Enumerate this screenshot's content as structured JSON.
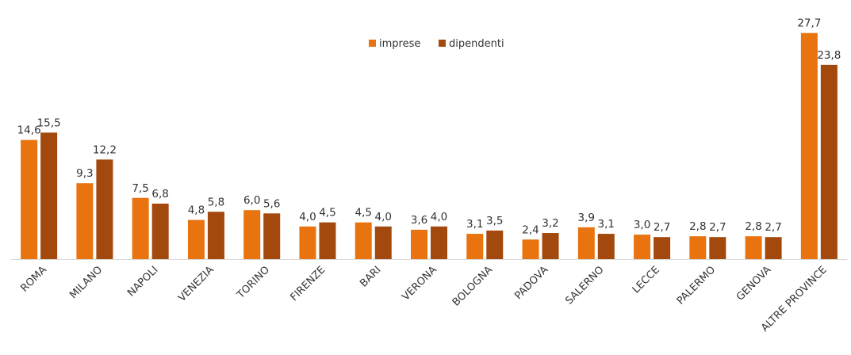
{
  "chart_data": {
    "type": "bar",
    "categories": [
      "ROMA",
      "MILANO",
      "NAPOLI",
      "VENEZIA",
      "TORINO",
      "FIRENZE",
      "BARI",
      "VERONA",
      "BOLOGNA",
      "PADOVA",
      "SALERNO",
      "LECCE",
      "PALERMO",
      "GENOVA",
      "ALTRE PROVINCE"
    ],
    "series": [
      {
        "name": "imprese",
        "color": "#e8730f",
        "values": [
          14.6,
          9.3,
          7.5,
          4.8,
          6.0,
          4.0,
          4.5,
          3.6,
          3.1,
          2.4,
          3.9,
          3.0,
          2.8,
          2.8,
          27.7
        ],
        "value_labels": [
          "14,6",
          "9,3",
          "7,5",
          "4,8",
          "6,0",
          "4,0",
          "4,5",
          "3,6",
          "3,1",
          "2,4",
          "3,9",
          "3,0",
          "2,8",
          "2,8",
          "27,7"
        ]
      },
      {
        "name": "dipendenti",
        "color": "#a3490e",
        "values": [
          15.5,
          12.2,
          6.8,
          5.8,
          5.6,
          4.5,
          4.0,
          4.0,
          3.5,
          3.2,
          3.1,
          2.7,
          2.7,
          2.7,
          23.8
        ],
        "value_labels": [
          "15,5",
          "12,2",
          "6,8",
          "5,8",
          "5,6",
          "4,5",
          "4,0",
          "4,0",
          "3,5",
          "3,2",
          "3,1",
          "2,7",
          "2,7",
          "2,7",
          "23,8"
        ]
      }
    ],
    "ylim": [
      0,
      30
    ],
    "legend": "top"
  }
}
